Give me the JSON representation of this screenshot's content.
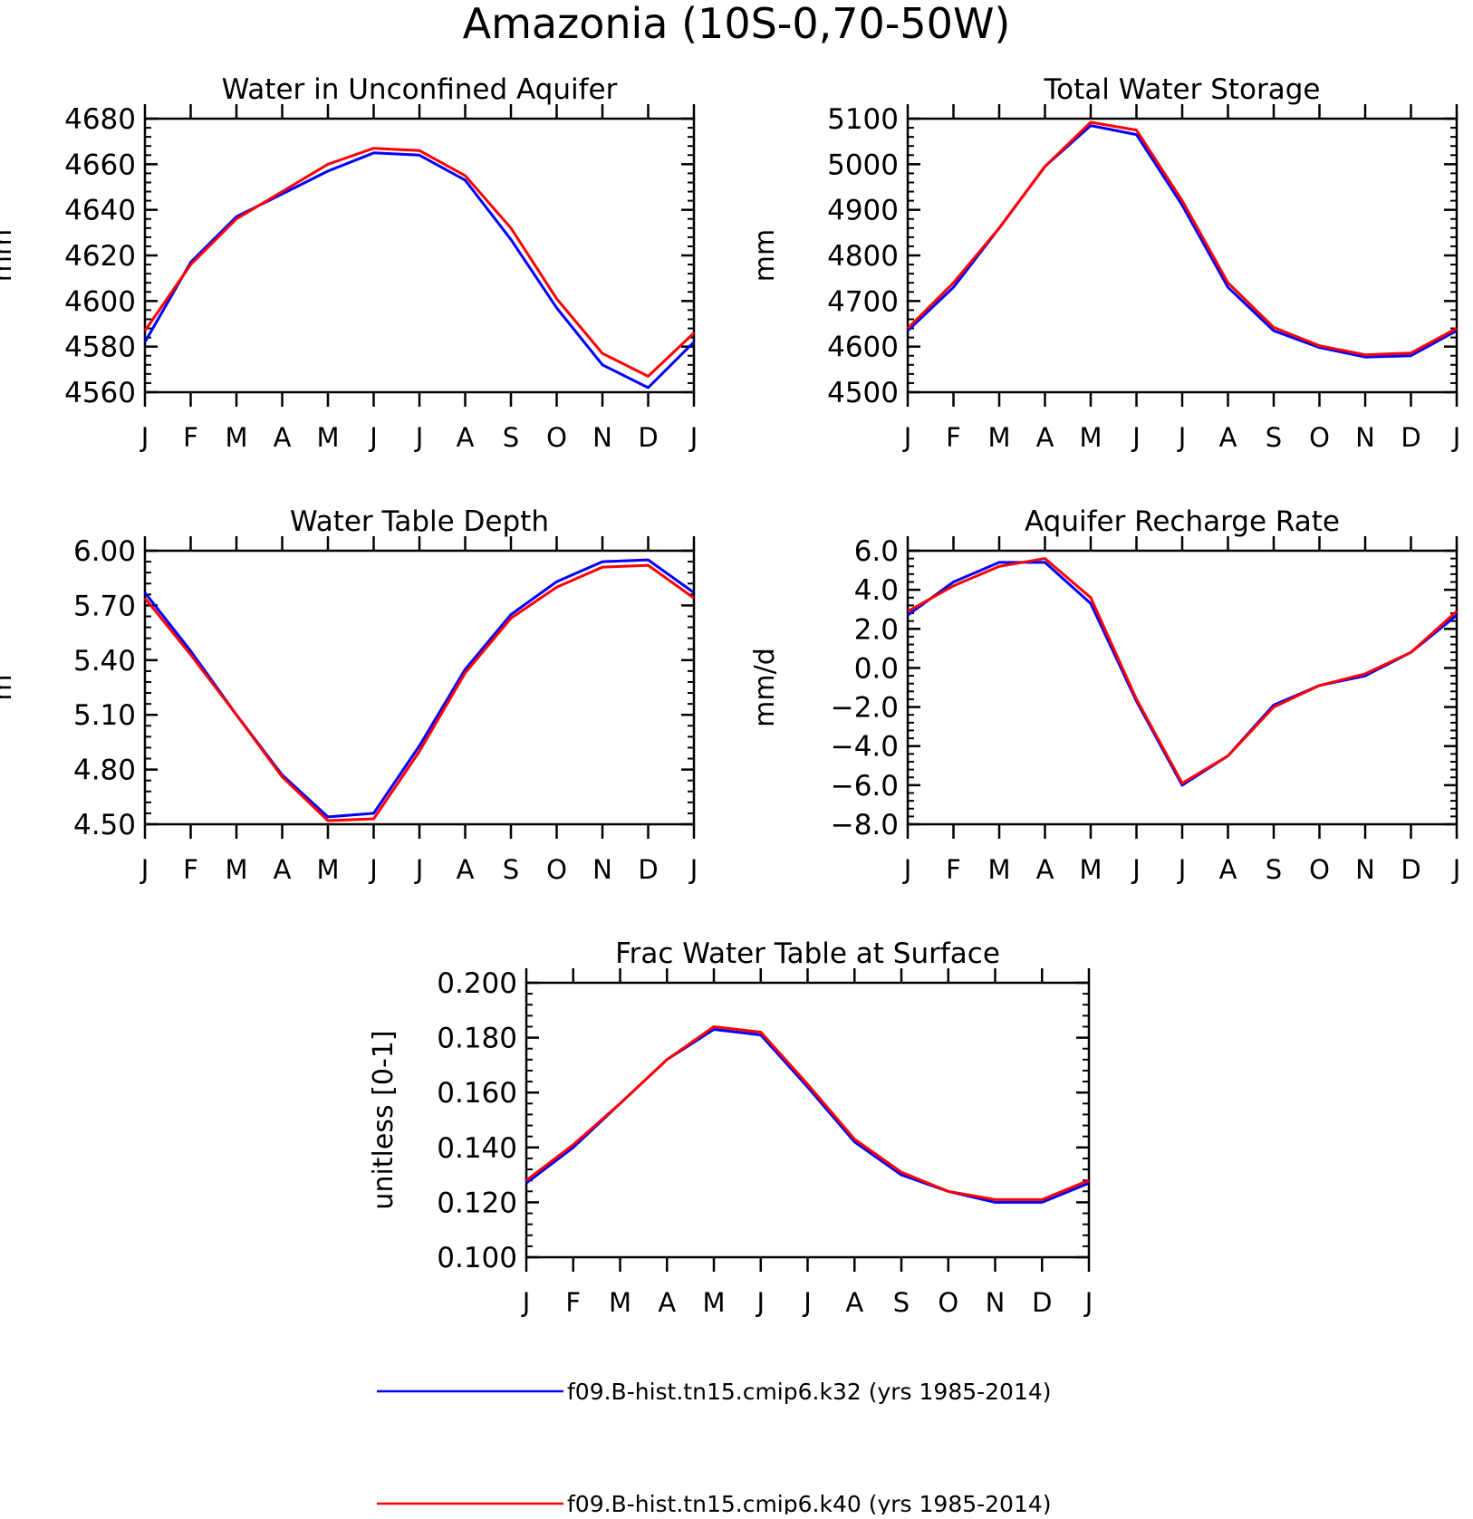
{
  "page_title": "Amazonia (10S-0,70-50W)",
  "colors": {
    "series_1": "#0000ff",
    "series_2": "#ff0000",
    "axis": "#000000"
  },
  "months": [
    "J",
    "F",
    "M",
    "A",
    "M",
    "J",
    "J",
    "A",
    "S",
    "O",
    "N",
    "D",
    "J"
  ],
  "legend": [
    {
      "label": "f09.B-hist.tn15.cmip6.k32 (yrs 1985-2014)",
      "color": "#0000ff"
    },
    {
      "label": "f09.B-hist.tn15.cmip6.k40 (yrs 1985-2014)",
      "color": "#ff0000"
    }
  ],
  "chart_data": [
    {
      "type": "line",
      "title": "Water in Unconfined Aquifer",
      "ylabel": "mm",
      "xlabel": "",
      "categories": [
        "J",
        "F",
        "M",
        "A",
        "M",
        "J",
        "J",
        "A",
        "S",
        "O",
        "N",
        "D",
        "J"
      ],
      "ylim": [
        4560,
        4680
      ],
      "yticks": [
        "4560",
        "4580",
        "4600",
        "4620",
        "4640",
        "4660",
        "4680"
      ],
      "series": [
        {
          "color": "#0000ff",
          "values": [
            4582,
            4617,
            4637,
            4647,
            4657,
            4665,
            4664,
            4653,
            4627,
            4597,
            4572,
            4562,
            4582
          ]
        },
        {
          "color": "#ff0000",
          "values": [
            4587,
            4616,
            4636,
            4648,
            4660,
            4667,
            4666,
            4655,
            4632,
            4601,
            4577,
            4567,
            4586
          ]
        }
      ]
    },
    {
      "type": "line",
      "title": "Total Water Storage",
      "ylabel": "mm",
      "xlabel": "",
      "categories": [
        "J",
        "F",
        "M",
        "A",
        "M",
        "J",
        "J",
        "A",
        "S",
        "O",
        "N",
        "D",
        "J"
      ],
      "ylim": [
        4500,
        5100
      ],
      "yticks": [
        "4500",
        "4600",
        "4700",
        "4800",
        "4900",
        "5000",
        "5100"
      ],
      "series": [
        {
          "color": "#0000ff",
          "values": [
            4635,
            4730,
            4860,
            4995,
            5085,
            5065,
            4910,
            4730,
            4635,
            4598,
            4577,
            4580,
            4635
          ]
        },
        {
          "color": "#ff0000",
          "values": [
            4640,
            4740,
            4860,
            4995,
            5092,
            5075,
            4920,
            4740,
            4642,
            4602,
            4582,
            4586,
            4640
          ]
        }
      ]
    },
    {
      "type": "line",
      "title": "Water Table Depth",
      "ylabel": "m",
      "xlabel": "",
      "categories": [
        "J",
        "F",
        "M",
        "A",
        "M",
        "J",
        "J",
        "A",
        "S",
        "O",
        "N",
        "D",
        "J"
      ],
      "ylim": [
        4.5,
        6.0
      ],
      "yticks": [
        "4.50",
        "4.80",
        "5.10",
        "5.40",
        "5.70",
        "6.00"
      ],
      "series": [
        {
          "color": "#0000ff",
          "values": [
            5.77,
            5.45,
            5.1,
            4.77,
            4.54,
            4.56,
            4.93,
            5.35,
            5.65,
            5.83,
            5.94,
            5.95,
            5.77
          ]
        },
        {
          "color": "#ff0000",
          "values": [
            5.74,
            5.43,
            5.1,
            4.76,
            4.52,
            4.53,
            4.9,
            5.33,
            5.63,
            5.8,
            5.91,
            5.92,
            5.74
          ]
        }
      ]
    },
    {
      "type": "line",
      "title": "Aquifer Recharge Rate",
      "ylabel": "mm/d",
      "xlabel": "",
      "categories": [
        "J",
        "F",
        "M",
        "A",
        "M",
        "J",
        "J",
        "A",
        "S",
        "O",
        "N",
        "D",
        "J"
      ],
      "ylim": [
        -8.0,
        6.0
      ],
      "yticks": [
        "−8.0",
        "−6.0",
        "−4.0",
        "−2.0",
        "0.0",
        "2.0",
        "4.0",
        "6.0"
      ],
      "series": [
        {
          "color": "#0000ff",
          "values": [
            2.7,
            4.4,
            5.4,
            5.4,
            3.3,
            -1.7,
            -6.0,
            -4.5,
            -1.9,
            -0.9,
            -0.4,
            0.8,
            2.7
          ]
        },
        {
          "color": "#ff0000",
          "values": [
            2.9,
            4.2,
            5.2,
            5.6,
            3.6,
            -1.6,
            -5.9,
            -4.5,
            -2.0,
            -0.9,
            -0.3,
            0.8,
            2.9
          ]
        }
      ]
    },
    {
      "type": "line",
      "title": "Frac Water Table at Surface",
      "ylabel": "unitless [0-1]",
      "xlabel": "",
      "categories": [
        "J",
        "F",
        "M",
        "A",
        "M",
        "J",
        "J",
        "A",
        "S",
        "O",
        "N",
        "D",
        "J"
      ],
      "ylim": [
        0.1,
        0.2
      ],
      "yticks": [
        "0.100",
        "0.120",
        "0.140",
        "0.160",
        "0.180",
        "0.200"
      ],
      "series": [
        {
          "color": "#0000ff",
          "values": [
            0.127,
            0.14,
            0.156,
            0.172,
            0.183,
            0.181,
            0.162,
            0.142,
            0.13,
            0.124,
            0.12,
            0.12,
            0.127
          ]
        },
        {
          "color": "#ff0000",
          "values": [
            0.128,
            0.141,
            0.156,
            0.172,
            0.184,
            0.182,
            0.163,
            0.143,
            0.131,
            0.124,
            0.121,
            0.121,
            0.128
          ]
        }
      ]
    }
  ]
}
